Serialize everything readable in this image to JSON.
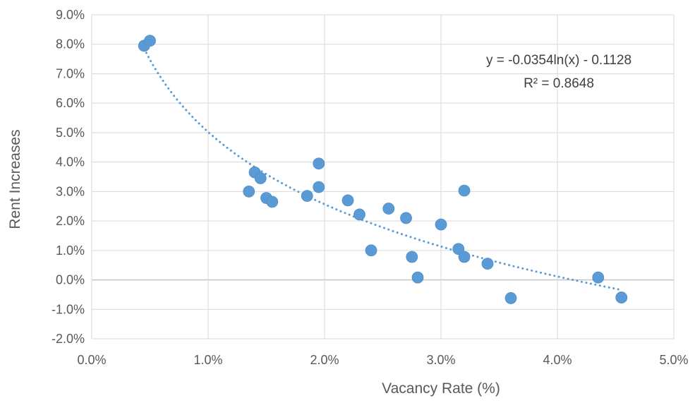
{
  "chart_data": {
    "type": "scatter",
    "title": "",
    "xlabel": "Vacancy Rate (%)",
    "ylabel": "Rent Increases",
    "xlim": [
      0.0,
      5.0
    ],
    "ylim": [
      -2.0,
      9.0
    ],
    "x_ticks": [
      "0.0%",
      "1.0%",
      "2.0%",
      "3.0%",
      "4.0%",
      "5.0%"
    ],
    "y_ticks": [
      "-2.0%",
      "-1.0%",
      "0.0%",
      "1.0%",
      "2.0%",
      "3.0%",
      "4.0%",
      "5.0%",
      "6.0%",
      "7.0%",
      "8.0%",
      "9.0%"
    ],
    "grid": true,
    "legend": "none",
    "marker_color": "#5B9BD5",
    "points": [
      {
        "x": 0.45,
        "y": 7.95
      },
      {
        "x": 0.5,
        "y": 8.12
      },
      {
        "x": 1.35,
        "y": 3.0
      },
      {
        "x": 1.4,
        "y": 3.65
      },
      {
        "x": 1.45,
        "y": 3.45
      },
      {
        "x": 1.5,
        "y": 2.78
      },
      {
        "x": 1.55,
        "y": 2.65
      },
      {
        "x": 1.85,
        "y": 2.85
      },
      {
        "x": 1.95,
        "y": 3.95
      },
      {
        "x": 1.95,
        "y": 3.15
      },
      {
        "x": 2.2,
        "y": 2.7
      },
      {
        "x": 2.3,
        "y": 2.22
      },
      {
        "x": 2.4,
        "y": 1.0
      },
      {
        "x": 2.55,
        "y": 2.42
      },
      {
        "x": 2.7,
        "y": 2.1
      },
      {
        "x": 2.75,
        "y": 0.78
      },
      {
        "x": 2.8,
        "y": 0.08
      },
      {
        "x": 3.0,
        "y": 1.88
      },
      {
        "x": 3.15,
        "y": 1.05
      },
      {
        "x": 3.2,
        "y": 3.03
      },
      {
        "x": 3.2,
        "y": 0.78
      },
      {
        "x": 3.4,
        "y": 0.55
      },
      {
        "x": 3.6,
        "y": -0.62
      },
      {
        "x": 4.35,
        "y": 0.08
      },
      {
        "x": 4.55,
        "y": -0.6
      }
    ],
    "trendline": {
      "type": "log",
      "a": -0.0354,
      "b": -0.1128,
      "x_range": [
        0.45,
        4.55
      ],
      "equation": "y = -0.0354ln(x) - 0.1128",
      "r2": "R² = 0.8648"
    }
  }
}
